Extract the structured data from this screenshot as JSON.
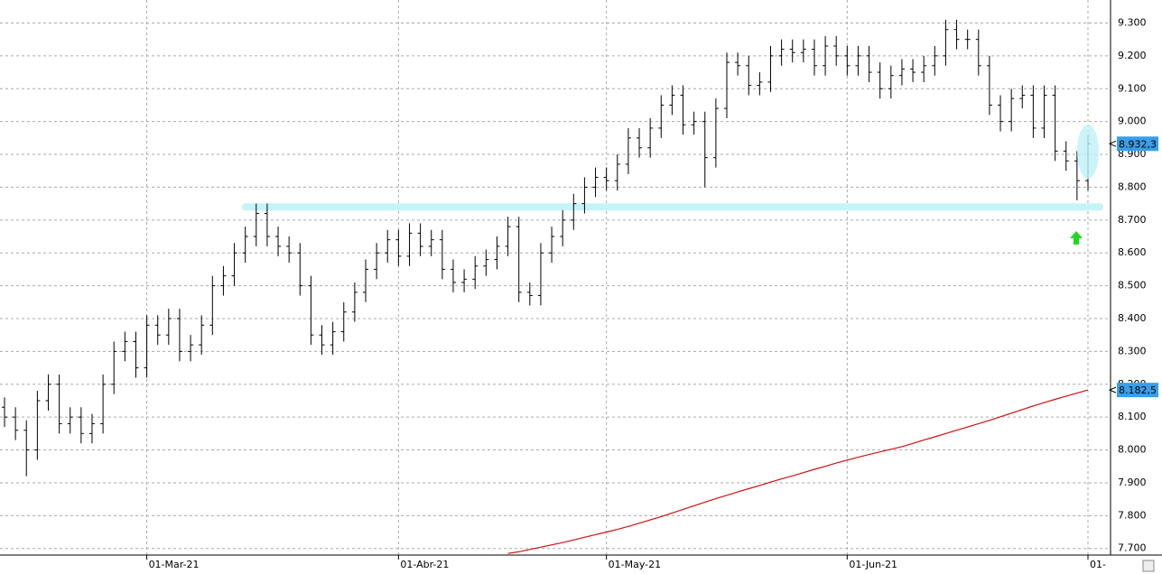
{
  "chart_data": {
    "type": "ohlc",
    "categories": [
      null,
      null,
      null,
      null,
      null,
      null,
      null,
      null,
      null,
      null,
      null,
      null,
      null,
      "01-Mar-21",
      null,
      null,
      null,
      null,
      null,
      null,
      null,
      null,
      null,
      null,
      null,
      null,
      null,
      null,
      null,
      null,
      null,
      null,
      null,
      null,
      null,
      null,
      "01-Abr-21",
      null,
      null,
      null,
      null,
      null,
      null,
      null,
      null,
      null,
      null,
      null,
      null,
      null,
      null,
      null,
      null,
      null,
      null,
      "01-May-21",
      null,
      null,
      null,
      null,
      null,
      null,
      null,
      null,
      null,
      null,
      null,
      null,
      null,
      null,
      null,
      null,
      null,
      null,
      null,
      null,
      null,
      "01-Jun-21",
      null,
      null,
      null,
      null,
      null,
      null,
      null,
      null,
      null,
      null,
      null,
      null,
      null,
      null,
      null,
      null,
      null,
      null,
      null,
      null,
      null,
      "01-"
    ],
    "open": [
      8130,
      8100,
      8060,
      8000,
      8150,
      8200,
      8080,
      8100,
      8050,
      8080,
      8200,
      8300,
      8330,
      8250,
      8380,
      8350,
      8400,
      8300,
      8320,
      8380,
      8500,
      8530,
      8600,
      8650,
      8720,
      8650,
      8620,
      8600,
      8500,
      8350,
      8320,
      8360,
      8420,
      8480,
      8550,
      8600,
      8640,
      8590,
      8660,
      8620,
      8640,
      8550,
      8510,
      8520,
      8560,
      8580,
      8620,
      8680,
      8480,
      8470,
      8600,
      8650,
      8700,
      8750,
      8800,
      8830,
      8820,
      8870,
      8950,
      8920,
      8980,
      9050,
      9080,
      8990,
      9000,
      8890,
      9040,
      9180,
      9170,
      9110,
      9120,
      9200,
      9220,
      9210,
      9220,
      9170,
      9230,
      9200,
      9170,
      9200,
      9150,
      9100,
      9140,
      9160,
      9150,
      9170,
      9200,
      9280,
      9250,
      9250,
      9170,
      9050,
      9000,
      9070,
      9080,
      8980,
      9080,
      8910,
      8880,
      8820
    ],
    "high": [
      8160,
      8130,
      8090,
      8180,
      8230,
      8230,
      8130,
      8130,
      8110,
      8230,
      8330,
      8360,
      8360,
      8410,
      8410,
      8430,
      8430,
      8350,
      8410,
      8530,
      8560,
      8630,
      8680,
      8750,
      8750,
      8680,
      8650,
      8630,
      8530,
      8380,
      8390,
      8450,
      8510,
      8580,
      8630,
      8670,
      8670,
      8690,
      8690,
      8670,
      8670,
      8580,
      8550,
      8590,
      8610,
      8650,
      8710,
      8710,
      8510,
      8630,
      8680,
      8730,
      8780,
      8830,
      8860,
      8860,
      8900,
      8980,
      8980,
      9010,
      9080,
      9110,
      9110,
      9030,
      9030,
      9070,
      9210,
      9210,
      9200,
      9150,
      9230,
      9250,
      9250,
      9250,
      9250,
      9260,
      9260,
      9230,
      9230,
      9230,
      9180,
      9170,
      9190,
      9190,
      9200,
      9230,
      9310,
      9310,
      9280,
      9280,
      9200,
      9080,
      9100,
      9110,
      9110,
      9110,
      9110,
      8940,
      8910,
      8960
    ],
    "low": [
      8070,
      8030,
      7920,
      7970,
      8120,
      8050,
      8050,
      8020,
      8020,
      8050,
      8170,
      8270,
      8220,
      8220,
      8320,
      8320,
      8270,
      8270,
      8290,
      8350,
      8470,
      8500,
      8570,
      8620,
      8620,
      8590,
      8570,
      8470,
      8320,
      8290,
      8290,
      8330,
      8390,
      8450,
      8520,
      8570,
      8560,
      8560,
      8590,
      8590,
      8520,
      8480,
      8480,
      8490,
      8530,
      8550,
      8590,
      8450,
      8440,
      8440,
      8570,
      8620,
      8670,
      8720,
      8770,
      8790,
      8790,
      8840,
      8890,
      8890,
      8950,
      9020,
      8960,
      8960,
      8800,
      8860,
      9010,
      9140,
      9080,
      9080,
      9090,
      9170,
      9180,
      9180,
      9140,
      9140,
      9170,
      9140,
      9140,
      9120,
      9070,
      9070,
      9110,
      9120,
      9120,
      9140,
      9170,
      9220,
      9220,
      9140,
      9020,
      8970,
      8970,
      9040,
      8950,
      8950,
      8880,
      8850,
      8760,
      8790
    ],
    "close": [
      8100,
      8060,
      8000,
      8150,
      8200,
      8080,
      8100,
      8050,
      8080,
      8200,
      8300,
      8330,
      8250,
      8380,
      8350,
      8400,
      8300,
      8320,
      8380,
      8500,
      8530,
      8600,
      8650,
      8720,
      8650,
      8620,
      8600,
      8500,
      8350,
      8320,
      8360,
      8420,
      8480,
      8550,
      8600,
      8640,
      8590,
      8660,
      8620,
      8640,
      8550,
      8510,
      8520,
      8560,
      8580,
      8620,
      8680,
      8480,
      8470,
      8600,
      8650,
      8700,
      8750,
      8800,
      8830,
      8820,
      8870,
      8950,
      8920,
      8980,
      9050,
      9080,
      8990,
      9000,
      8890,
      9040,
      9180,
      9170,
      9110,
      9120,
      9200,
      9220,
      9210,
      9220,
      9170,
      9230,
      9200,
      9170,
      9200,
      9150,
      9100,
      9140,
      9160,
      9150,
      9170,
      9200,
      9280,
      9250,
      9250,
      9170,
      9050,
      9000,
      9070,
      9080,
      8980,
      9080,
      8910,
      8880,
      8820,
      8932.3
    ],
    "color": "#000000",
    "last_value_label": "8.932,3",
    "ma": {
      "color": "#d01010",
      "last_value_label": "8.182,5",
      "values": [
        null,
        null,
        null,
        null,
        null,
        null,
        null,
        null,
        null,
        null,
        null,
        null,
        null,
        null,
        null,
        null,
        null,
        null,
        null,
        null,
        null,
        null,
        null,
        null,
        null,
        null,
        null,
        null,
        null,
        null,
        null,
        null,
        null,
        null,
        null,
        null,
        null,
        null,
        null,
        null,
        null,
        null,
        null,
        null,
        null,
        null,
        7685,
        7690,
        7697,
        7704,
        7711,
        7718,
        7726,
        7734,
        7742,
        7750,
        7758,
        7767,
        7777,
        7787,
        7797,
        7808,
        7819,
        7830,
        7841,
        7852,
        7862,
        7872,
        7882,
        7892,
        7902,
        7912,
        7921,
        7931,
        7941,
        7950,
        7960,
        7969,
        7978,
        7986,
        7994,
        8002,
        8010,
        8020,
        8030,
        8040,
        8050,
        8060,
        8070,
        8080,
        8090,
        8101,
        8112,
        8123,
        8134,
        8144,
        8154,
        8164,
        8173,
        8182.5
      ]
    },
    "hline": {
      "value": 8740,
      "color": "#c6f3f8"
    },
    "label_color": "#3a9ee8",
    "ylim": [
      7680,
      9370
    ],
    "yticks": [
      {
        "value": 9300,
        "label": "9.300"
      },
      {
        "value": 9200,
        "label": "9.200"
      },
      {
        "value": 9100,
        "label": "9.100"
      },
      {
        "value": 9000,
        "label": "9.000"
      },
      {
        "value": 8900,
        "label": "8.900"
      },
      {
        "value": 8800,
        "label": "8.800"
      },
      {
        "value": 8700,
        "label": "8.700"
      },
      {
        "value": 8600,
        "label": "8.600"
      },
      {
        "value": 8500,
        "label": "8.500"
      },
      {
        "value": 8400,
        "label": "8.400"
      },
      {
        "value": 8300,
        "label": "8.300"
      },
      {
        "value": 8200,
        "label": "8.200"
      },
      {
        "value": 8100,
        "label": "8.100"
      },
      {
        "value": 8000,
        "label": "8.000"
      },
      {
        "value": 7900,
        "label": "7.900"
      },
      {
        "value": 7800,
        "label": "7.800"
      },
      {
        "value": 7700,
        "label": "7.700"
      }
    ],
    "grid": true
  }
}
